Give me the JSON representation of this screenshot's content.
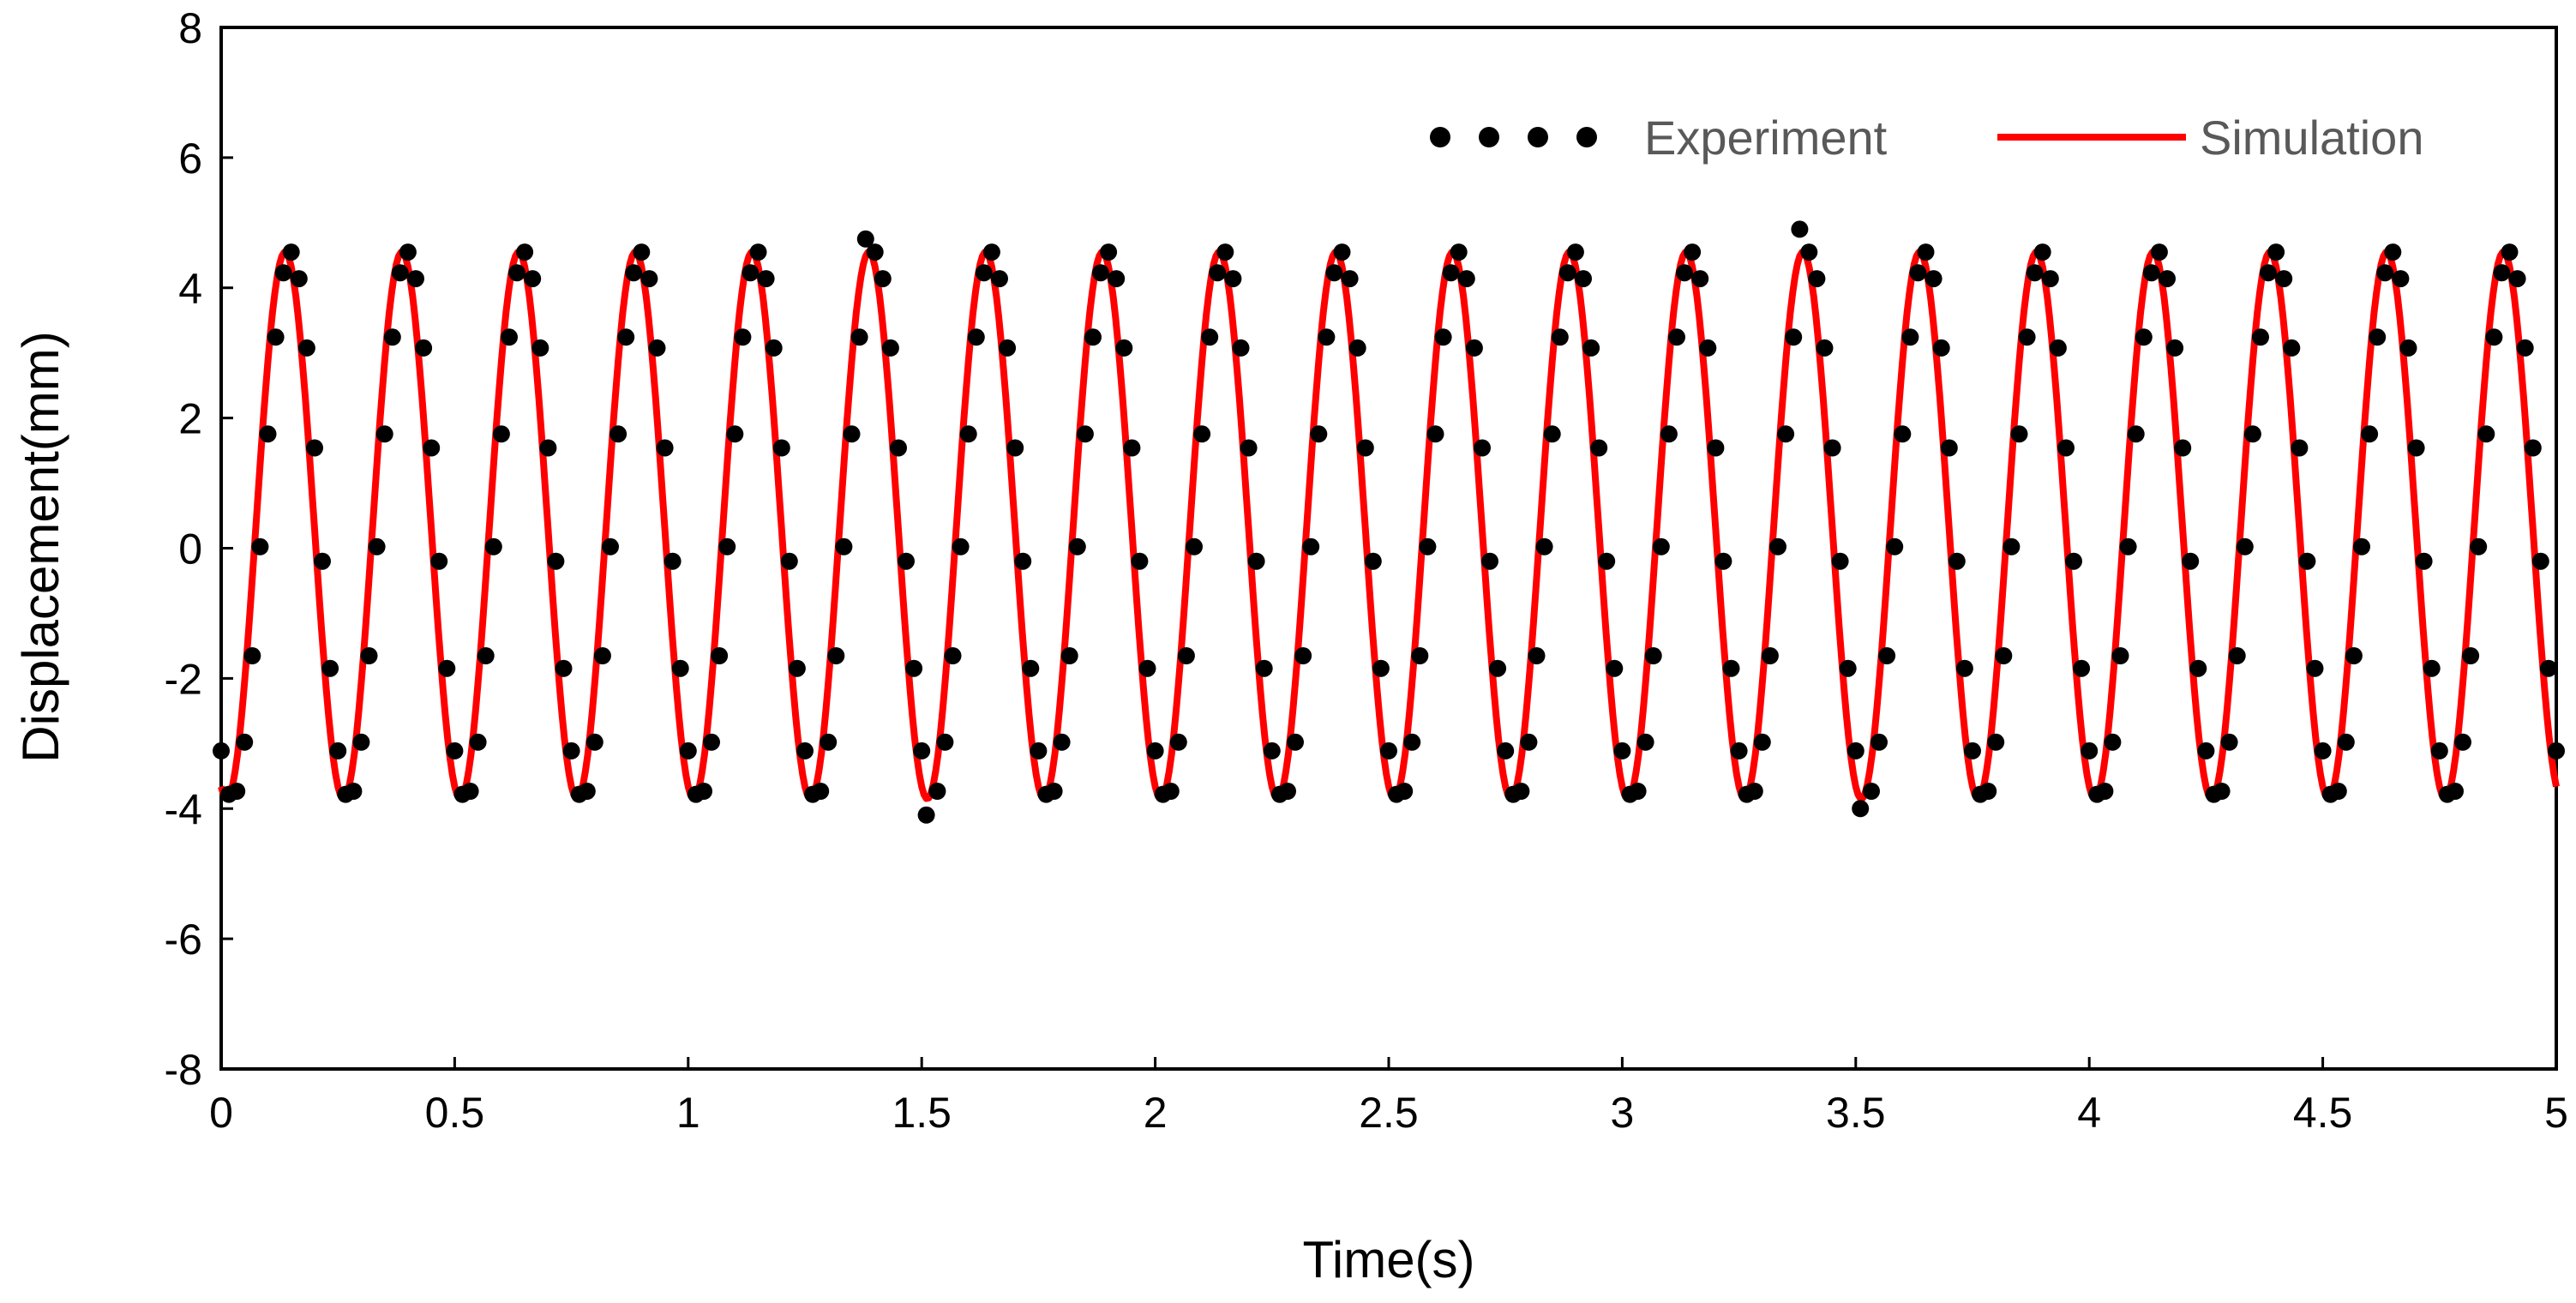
{
  "chart_data": {
    "type": "line",
    "title": "",
    "xlabel": "Time(s)",
    "ylabel": "Displacement(mm)",
    "xlim": [
      0,
      5
    ],
    "ylim": [
      -8,
      8
    ],
    "x_ticks": [
      "0",
      "0.5",
      "1",
      "1.5",
      "2",
      "2.5",
      "3",
      "3.5",
      "4",
      "4.5",
      "5"
    ],
    "y_ticks": [
      "-8",
      "-6",
      "-4",
      "-2",
      "0",
      "2",
      "4",
      "6",
      "8"
    ],
    "grid": false,
    "legend_position": "top-right",
    "series": [
      {
        "name": "Experiment",
        "style": "scatter",
        "color": "#000000",
        "frequency_hz": 4,
        "amplitude": 4.2,
        "offset": 0.35,
        "sample_count": 301,
        "outliers": [
          {
            "x": 1.38,
            "y": 4.75
          },
          {
            "x": 1.51,
            "y": -4.1
          },
          {
            "x": 3.38,
            "y": 4.9
          },
          {
            "x": 3.51,
            "y": -4.0
          }
        ]
      },
      {
        "name": "Simulation",
        "style": "line",
        "color": "#ff0000",
        "frequency_hz": 4,
        "amplitude": 4.2,
        "offset": 0.35,
        "sample_count": 1000
      }
    ]
  },
  "legend": {
    "experiment_label": "Experiment",
    "simulation_label": "Simulation"
  },
  "axes": {
    "x_title": "Time(s)",
    "y_title": "Displacement(mm)"
  }
}
